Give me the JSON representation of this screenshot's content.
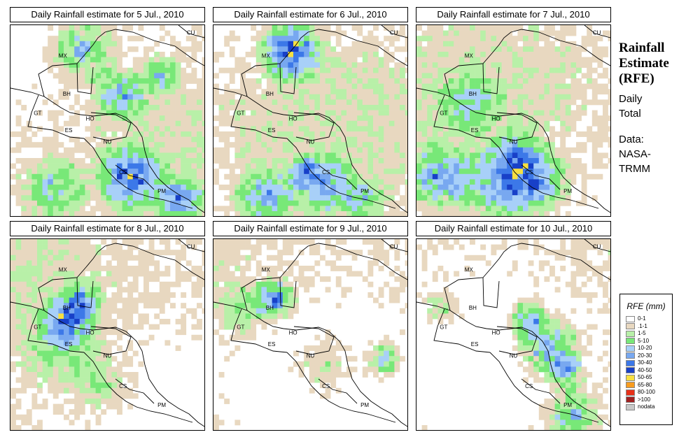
{
  "panels": [
    {
      "title": "Daily Rainfall estimate for  5 Jul., 2010",
      "seed": 5,
      "hotspots": [
        [
          0.35,
          0.12,
          0.1,
          3
        ],
        [
          0.55,
          0.35,
          0.08,
          3
        ],
        [
          0.6,
          0.78,
          0.1,
          4
        ],
        [
          0.85,
          0.9,
          0.07,
          3
        ],
        [
          0.2,
          0.85,
          0.1,
          2
        ],
        [
          0.75,
          0.25,
          0.06,
          2
        ]
      ]
    },
    {
      "title": "Daily Rainfall estimate for  6 Jul., 2010",
      "seed": 6,
      "hotspots": [
        [
          0.38,
          0.12,
          0.09,
          5
        ],
        [
          0.25,
          0.88,
          0.09,
          3
        ],
        [
          0.55,
          0.82,
          0.09,
          3
        ],
        [
          0.45,
          0.75,
          0.05,
          2
        ],
        [
          0.75,
          0.9,
          0.06,
          2
        ]
      ]
    },
    {
      "title": "Daily Rainfall estimate for  7 Jul., 2010",
      "seed": 7,
      "hotspots": [
        [
          0.1,
          0.78,
          0.1,
          3
        ],
        [
          0.4,
          0.82,
          0.12,
          3
        ],
        [
          0.6,
          0.8,
          0.1,
          3
        ],
        [
          0.5,
          0.65,
          0.08,
          2
        ],
        [
          0.25,
          0.4,
          0.1,
          1
        ]
      ]
    },
    {
      "title": "Daily Rainfall estimate for  8 Jul., 2010",
      "seed": 8,
      "hotspots": [
        [
          0.28,
          0.4,
          0.08,
          3
        ],
        [
          0.35,
          0.3,
          0.06,
          2
        ],
        [
          0.25,
          0.55,
          0.12,
          1
        ],
        [
          0.45,
          0.75,
          0.1,
          1
        ]
      ]
    },
    {
      "title": "Daily Rainfall estimate for  9 Jul., 2010",
      "seed": 9,
      "hotspots": [
        [
          0.3,
          0.3,
          0.06,
          4
        ],
        [
          0.85,
          0.62,
          0.06,
          3
        ],
        [
          0.15,
          0.35,
          0.08,
          1
        ],
        [
          0.55,
          0.65,
          0.1,
          1
        ]
      ]
    },
    {
      "title": "Daily Rainfall estimate for  10 Jul., 2010",
      "seed": 10,
      "hotspots": [
        [
          0.65,
          0.55,
          0.1,
          4
        ],
        [
          0.75,
          0.68,
          0.06,
          3
        ],
        [
          0.55,
          0.4,
          0.06,
          3
        ],
        [
          0.78,
          0.9,
          0.08,
          3
        ],
        [
          0.12,
          0.35,
          0.06,
          1
        ]
      ]
    }
  ],
  "map_labels": [
    "MX",
    "CU",
    "BH",
    "GT",
    "HO",
    "ES",
    "NU",
    "CS",
    "PM"
  ],
  "side": {
    "title_line1": "Rainfall",
    "title_line2": "Estimate",
    "title_line3": "(RFE)",
    "daily_line1": "Daily",
    "daily_line2": "Total",
    "data_line1": "Data:",
    "data_line2": "NASA-",
    "data_line3": "TRMM"
  },
  "legend": {
    "title": "RFE (mm)",
    "items": [
      {
        "label": "0-1",
        "color": "#ffffff"
      },
      {
        "label": ".1-1",
        "color": "#e8d8c0"
      },
      {
        "label": "1-5",
        "color": "#b8f0a8"
      },
      {
        "label": "5-10",
        "color": "#78e878"
      },
      {
        "label": "10-20",
        "color": "#a8d0f8"
      },
      {
        "label": "20-30",
        "color": "#78a8f0"
      },
      {
        "label": "30-40",
        "color": "#3c78e8"
      },
      {
        "label": "40-50",
        "color": "#1840c8"
      },
      {
        "label": "50-65",
        "color": "#f8e040"
      },
      {
        "label": "65-80",
        "color": "#f89c20"
      },
      {
        "label": "80-100",
        "color": "#e83018"
      },
      {
        "label": ">100",
        "color": "#a02020"
      },
      {
        "label": "nodata",
        "color": "#c8c8c8"
      }
    ]
  }
}
